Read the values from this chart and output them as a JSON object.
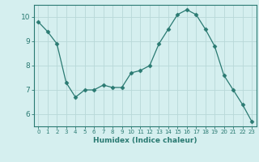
{
  "x": [
    0,
    1,
    2,
    3,
    4,
    5,
    6,
    7,
    8,
    9,
    10,
    11,
    12,
    13,
    14,
    15,
    16,
    17,
    18,
    19,
    20,
    21,
    22,
    23
  ],
  "y": [
    9.8,
    9.4,
    8.9,
    7.3,
    6.7,
    7.0,
    7.0,
    7.2,
    7.1,
    7.1,
    7.7,
    7.8,
    8.0,
    8.9,
    9.5,
    10.1,
    10.3,
    10.1,
    9.5,
    8.8,
    7.6,
    7.0,
    6.4,
    5.7
  ],
  "line_color": "#2a7a72",
  "marker": "D",
  "marker_size": 2.5,
  "bg_color": "#d5efef",
  "grid_color": "#b8d8d8",
  "axis_color": "#2a7a72",
  "xlabel": "Humidex (Indice chaleur)",
  "xlim": [
    -0.5,
    23.5
  ],
  "ylim": [
    5.5,
    10.5
  ],
  "yticks": [
    6,
    7,
    8,
    9,
    10
  ],
  "xticks": [
    0,
    1,
    2,
    3,
    4,
    5,
    6,
    7,
    8,
    9,
    10,
    11,
    12,
    13,
    14,
    15,
    16,
    17,
    18,
    19,
    20,
    21,
    22,
    23
  ],
  "xlabel_fontsize": 6.5,
  "xtick_fontsize": 5.0,
  "ytick_fontsize": 6.5
}
